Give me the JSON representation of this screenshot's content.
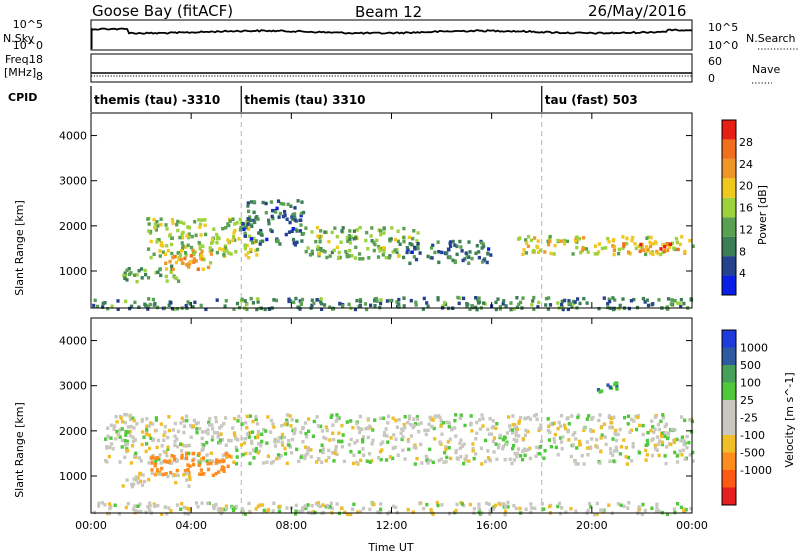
{
  "header": {
    "station": "Goose Bay (fitACF)",
    "beam": "Beam 12",
    "date": "26/May/2016"
  },
  "noise_panel": {
    "left_label": "N.Sky",
    "right_label": "N.Search",
    "tick_top": "10^5",
    "tick_bottom": "10^0"
  },
  "freq_panel": {
    "label_line1": "Freq.",
    "label_line2": "[MHz]",
    "left_tick_top": "18",
    "left_tick_bottom": "8",
    "right_tick_top": "60",
    "right_tick_bottom": "0",
    "right_label": "Nave"
  },
  "cpid": {
    "label": "CPID",
    "segments": [
      {
        "name": "themis (tau) -3310",
        "start_hour": 0
      },
      {
        "name": "themis (tau) 3310",
        "start_hour": 6
      },
      {
        "name": "tau (fast) 503",
        "start_hour": 18
      }
    ]
  },
  "colors": {
    "power_scale": [
      "#0a1fe6",
      "#25428c",
      "#3c7f56",
      "#5aa052",
      "#9cd23c",
      "#f0c81e",
      "#f09628",
      "#f06e1e",
      "#e61e14"
    ],
    "velocity_scale": [
      "#e61e1e",
      "#ff5a14",
      "#ff8c1e",
      "#f0be28",
      "#c8c8c0",
      "#c8c8c0",
      "#50c83c",
      "#46a05a",
      "#2d5aa0",
      "#1e3cdc"
    ],
    "ground_scatter": "#b4b4b4",
    "cpid_divider": "#b4b4b4"
  },
  "chart_data": [
    {
      "type": "heatmap",
      "title": "Power",
      "ylabel": "Slant Range [km]",
      "xlabel": "Time UT",
      "colorbar_label": "Power [dB]",
      "ylim": [
        180,
        4500
      ],
      "xlim_hours": [
        0,
        24
      ],
      "y_ticks": [
        1000,
        2000,
        3000,
        4000
      ],
      "colorbar": {
        "range": [
          0,
          32
        ],
        "ticks": [
          4,
          8,
          12,
          16,
          20,
          24,
          28
        ]
      },
      "regions": [
        {
          "t": [
            2.2,
            6.6
          ],
          "r": [
            1300,
            2200
          ],
          "level": 16
        },
        {
          "t": [
            1.2,
            3.5
          ],
          "r": [
            800,
            1150
          ],
          "level": 12
        },
        {
          "t": [
            2.8,
            4.8
          ],
          "r": [
            1050,
            1500
          ],
          "level": 22
        },
        {
          "t": [
            6.0,
            8.5
          ],
          "r": [
            1600,
            2600
          ],
          "level": 8
        },
        {
          "t": [
            8.5,
            13.0
          ],
          "r": [
            1300,
            2000
          ],
          "level": 14
        },
        {
          "t": [
            12.5,
            16.0
          ],
          "r": [
            1200,
            1700
          ],
          "level": 8
        },
        {
          "t": [
            17.0,
            24.0
          ],
          "r": [
            1400,
            1800
          ],
          "level": 18
        },
        {
          "t": [
            21.0,
            23.5
          ],
          "r": [
            1450,
            1650
          ],
          "level": 24
        },
        {
          "t": [
            0,
            24
          ],
          "r": [
            180,
            450
          ],
          "level": 10
        }
      ]
    },
    {
      "type": "heatmap",
      "title": "Velocity",
      "ylabel": "Slant Range [km]",
      "xlabel": "Time UT",
      "colorbar_label": "Velocity [m s^-1]",
      "ylim": [
        180,
        4500
      ],
      "xlim_hours": [
        0,
        24
      ],
      "y_ticks": [
        1000,
        2000,
        3000,
        4000
      ],
      "x_ticks": [
        "00:00",
        "04:00",
        "08:00",
        "12:00",
        "16:00",
        "20:00",
        "00:00"
      ],
      "colorbar": {
        "ticks": [
          1000,
          500,
          100,
          25,
          -25,
          -100,
          -500,
          -1000
        ]
      },
      "regions": [
        {
          "t": [
            0.5,
            24.0
          ],
          "r": [
            1300,
            2400
          ],
          "velocity": 0
        },
        {
          "t": [
            2.3,
            5.5
          ],
          "r": [
            1050,
            1550
          ],
          "velocity": -300
        },
        {
          "t": [
            1.2,
            4.0
          ],
          "r": [
            800,
            1100
          ],
          "velocity": -20
        },
        {
          "t": [
            20.0,
            21.0
          ],
          "r": [
            2800,
            3100
          ],
          "velocity": 120
        },
        {
          "t": [
            0,
            24
          ],
          "r": [
            180,
            450
          ],
          "velocity": 0
        }
      ]
    }
  ]
}
